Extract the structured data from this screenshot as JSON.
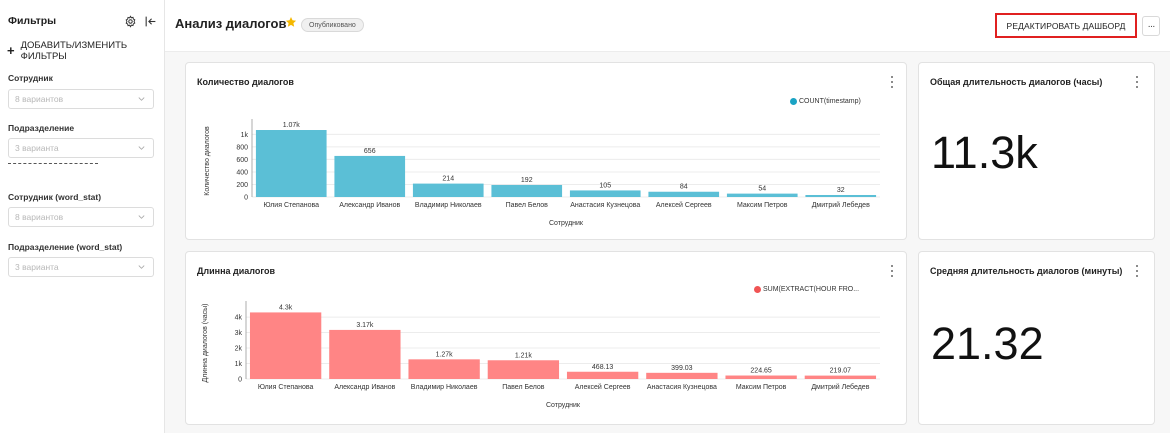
{
  "sidebar": {
    "title": "Фильтры",
    "add_filters": "ДОБАВИТЬ/ИЗМЕНИТЬ ФИЛЬТРЫ",
    "filters": [
      {
        "label": "Сотрудник",
        "placeholder": "8 вариантов"
      },
      {
        "label": "Подразделение",
        "placeholder": "3 варианта"
      },
      {
        "label": "Сотрудник (word_stat)",
        "placeholder": "8 вариантов"
      },
      {
        "label": "Подразделение (word_stat)",
        "placeholder": "3 варианта"
      }
    ]
  },
  "header": {
    "title": "Анализ диалогов",
    "status": "Опубликовано",
    "edit_label": "РЕДАКТИРОВАТЬ ДАШБОРД",
    "more_label": "···"
  },
  "cards": {
    "count": {
      "title": "Количество диалогов"
    },
    "length": {
      "title": "Длинна диалогов"
    },
    "total": {
      "title": "Общая длительность диалогов (часы)",
      "value": "11.3k"
    },
    "avg": {
      "title": "Средняя длительность диалогов (минуты)",
      "value": "21.32"
    }
  },
  "colors": {
    "accent_red": "#e02020",
    "bar_blue": "#5bbfd6",
    "bar_red": "#ff8585",
    "legend_blue": "#1aa3c4",
    "legend_red": "#f05454",
    "star": "#f5b800"
  },
  "icons": {
    "settings": "gear-icon",
    "collapse": "collapse-left-icon",
    "star": "star-icon",
    "chevron": "chevron-down-icon",
    "kebab": "kebab-menu-icon"
  },
  "chart_data": [
    {
      "type": "bar",
      "title": "Количество диалогов",
      "xlabel": "Сотрудник",
      "ylabel": "Количество диалогов",
      "legend": "COUNT(timestamp)",
      "legend_position": "top-right",
      "categories": [
        "Юлия Степанова",
        "Александр Иванов",
        "Владимир Николаев",
        "Павел Белов",
        "Анастасия Кузнецова",
        "Алексей Сергеев",
        "Максим Петров",
        "Дмитрий Лебедев"
      ],
      "values": [
        1070,
        656,
        214,
        192,
        105,
        84,
        54,
        32
      ],
      "labels": [
        "1.07k",
        "656",
        "214",
        "192",
        "105",
        "84",
        "54",
        "32"
      ],
      "yticks": [
        0,
        200,
        400,
        600,
        800,
        1000
      ],
      "ytick_labels": [
        "0",
        "200",
        "400",
        "600",
        "800",
        "1k"
      ],
      "ylim": [
        0,
        1150
      ],
      "grid": true
    },
    {
      "type": "bar",
      "title": "Длинна диалогов",
      "xlabel": "Сотрудник",
      "ylabel": "Длинна диалогов (часы)",
      "legend": "SUM(EXTRACT(HOUR FRO...",
      "legend_position": "top-right",
      "categories": [
        "Юлия Степанова",
        "Александр Иванов",
        "Владимир Николаев",
        "Павел Белов",
        "Алексей Сергеев",
        "Анастасия Кузнецова",
        "Максим Петров",
        "Дмитрий Лебедев"
      ],
      "values": [
        4300,
        3170,
        1270,
        1210,
        468.13,
        399.03,
        224.65,
        219.07
      ],
      "labels": [
        "4.3k",
        "3.17k",
        "1.27k",
        "1.21k",
        "468.13",
        "399.03",
        "224.65",
        "219.07"
      ],
      "yticks": [
        0,
        1000,
        2000,
        3000,
        4000
      ],
      "ytick_labels": [
        "0",
        "1k",
        "2k",
        "3k",
        "4k"
      ],
      "ylim": [
        0,
        4650
      ],
      "grid": true
    }
  ]
}
